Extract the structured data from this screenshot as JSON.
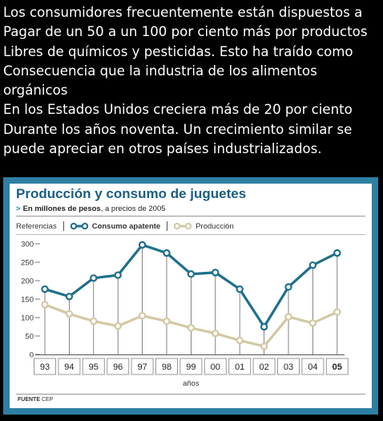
{
  "caption": {
    "lines": [
      "Los consumidores frecuentemente están dispuestos a",
      "Pagar de un 50 a un 100 por ciento más por productos",
      "Libres de químicos y pesticidas. Esto ha traído como",
      "Consecuencia que la industria de los alimentos orgánicos",
      "En los Estados Unidos creciera más de 20 por ciento",
      "Durante los años noventa. Un crecimiento similar se",
      "puede apreciar en otros países industrializados."
    ]
  },
  "footer": {
    "label": "FUENTE",
    "source": "CEP"
  },
  "colors": {
    "card_border": "#2e7fa3",
    "series_consumo": "#1f6f8b",
    "series_produccion": "#d2c8a3",
    "title": "#1a5e84"
  },
  "chart_data": {
    "type": "line",
    "title": "Producción y consumo de juguetes",
    "subtitle_bold": "En millones de pesos",
    "subtitle_rest": ", a precios de 2005",
    "legend_label": "Referencias",
    "legend_placement": "top-left",
    "xlabel": "años",
    "ylabel": "",
    "ylim": [
      0,
      300
    ],
    "yticks": [
      0,
      50,
      100,
      150,
      200,
      250,
      300
    ],
    "grid": "vertical-drop-lines",
    "categories": [
      "93",
      "94",
      "95",
      "96",
      "97",
      "98",
      "99",
      "00",
      "01",
      "02",
      "03",
      "04",
      "05"
    ],
    "highlight_category": "05",
    "series": [
      {
        "name": "Consumo apatente",
        "values": [
          177,
          157,
          207,
          215,
          297,
          275,
          218,
          222,
          177,
          75,
          183,
          242,
          275
        ]
      },
      {
        "name": "Producción",
        "values": [
          135,
          110,
          90,
          77,
          105,
          90,
          72,
          57,
          38,
          22,
          102,
          85,
          115
        ]
      }
    ]
  }
}
